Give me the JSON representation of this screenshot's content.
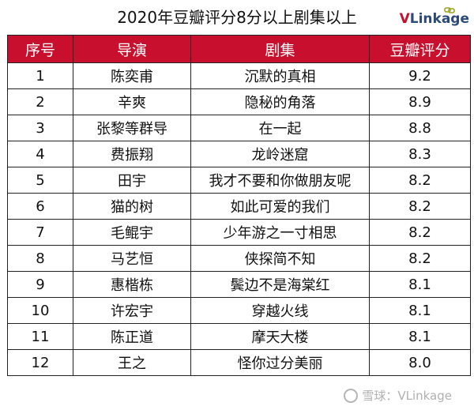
{
  "title": "2020年豆瓣评分8分以上剧集以上",
  "logo": {
    "prefix": "V",
    "rest": "Linkage"
  },
  "table": {
    "headers": [
      "序号",
      "导演",
      "剧集",
      "豆瓣评分"
    ],
    "rows": [
      [
        "1",
        "陈奕甫",
        "沉默的真相",
        "9.2"
      ],
      [
        "2",
        "辛爽",
        "隐秘的角落",
        "8.9"
      ],
      [
        "3",
        "张黎等群导",
        "在一起",
        "8.8"
      ],
      [
        "4",
        "费振翔",
        "龙岭迷窟",
        "8.3"
      ],
      [
        "5",
        "田宇",
        "我才不要和你做朋友呢",
        "8.2"
      ],
      [
        "6",
        "猫的树",
        "如此可爱的我们",
        "8.2"
      ],
      [
        "7",
        "毛鲲宇",
        "少年游之一寸相思",
        "8.2"
      ],
      [
        "8",
        "马艺恒",
        "侠探简不知",
        "8.2"
      ],
      [
        "9",
        "惠楷栋",
        "鬓边不是海棠红",
        "8.1"
      ],
      [
        "10",
        "许宏宇",
        "穿越火线",
        "8.1"
      ],
      [
        "11",
        "陈正道",
        "摩天大楼",
        "8.1"
      ],
      [
        "12",
        "王之",
        "怪你过分美丽",
        "8.0"
      ]
    ]
  },
  "watermark": "雪球：VLinkage"
}
